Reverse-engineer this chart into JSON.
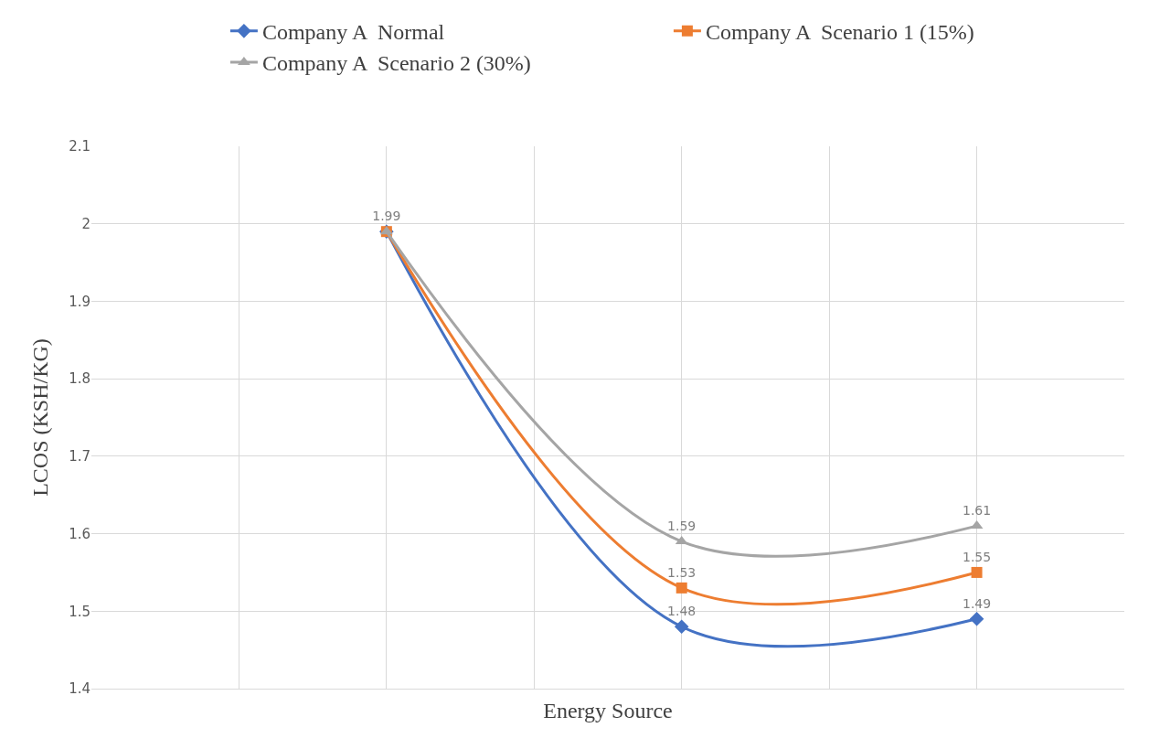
{
  "chart_data": {
    "type": "line",
    "xlabel": "Energy Source",
    "ylabel": "LCOS (KSH/KG)",
    "categories": [
      null,
      null,
      null,
      null
    ],
    "series": [
      {
        "name": "Company A  Normal",
        "color": "#4472c4",
        "marker": "diamond",
        "values": [
          null,
          1.99,
          1.48,
          1.49
        ],
        "value_labels": [
          null,
          "1.99",
          "1.48",
          "1.49"
        ]
      },
      {
        "name": "Company A  Scenario 1 (15%)",
        "color": "#ed7d31",
        "marker": "square",
        "values": [
          null,
          1.99,
          1.53,
          1.55
        ],
        "value_labels": [
          null,
          null,
          "1.53",
          "1.55"
        ]
      },
      {
        "name": "Company A  Scenario 2 (30%)",
        "color": "#a5a5a5",
        "marker": "triangle",
        "values": [
          null,
          1.99,
          1.59,
          1.61
        ],
        "value_labels": [
          null,
          null,
          "1.59",
          "1.61"
        ]
      }
    ],
    "ylim": [
      1.4,
      2.1
    ],
    "yticks": [
      1.4,
      1.5,
      1.6,
      1.7,
      1.8,
      1.9,
      2,
      2.1
    ],
    "grid": true,
    "legend": "top",
    "line_style": "solid",
    "tick_labels": "y"
  }
}
